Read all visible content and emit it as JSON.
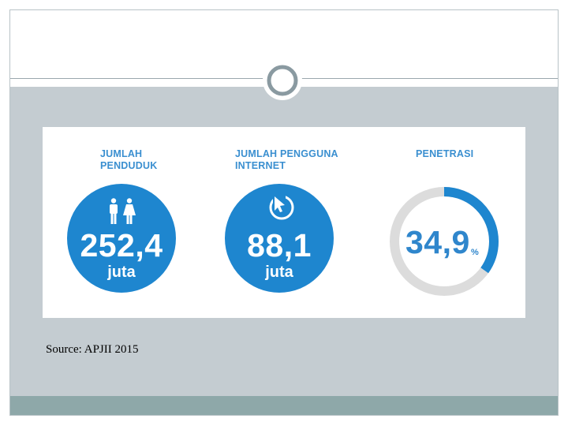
{
  "slide": {
    "source": "Source: APJII 2015",
    "colors": {
      "body_bg": "#c4ccd1",
      "footer_bar": "#8ea8a9",
      "ring_ornament": "#8a9aa1",
      "accent_blue": "#1e86cf",
      "gauge_track": "#dcdcdc"
    }
  },
  "infographic": {
    "population": {
      "title_line1": "JUMLAH",
      "title_line2": "PENDUDUK",
      "value": "252,4",
      "unit": "juta",
      "icon": "male-female-icon"
    },
    "internet_users": {
      "title_line1": "JUMLAH PENGGUNA",
      "title_line2": "INTERNET",
      "value": "88,1",
      "unit": "juta",
      "icon": "cursor-arrow-icon"
    },
    "penetration": {
      "title": "PENETRASI",
      "value": "34,9",
      "unit": "%",
      "fraction": 0.349
    }
  }
}
